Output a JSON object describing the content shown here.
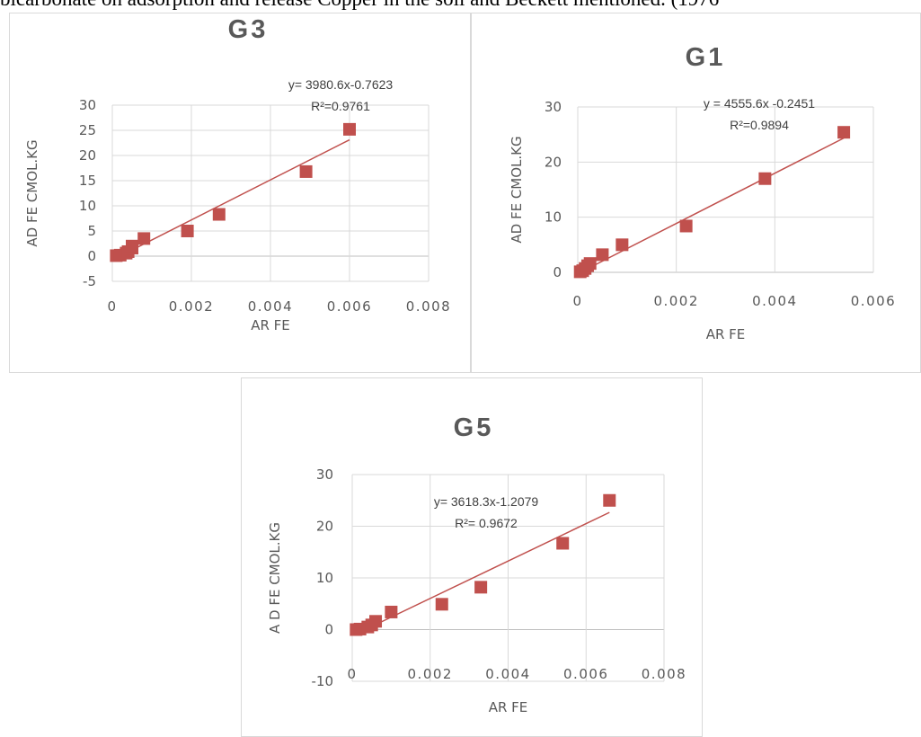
{
  "caption_text": "bicarbonate on adsorption and release Copper in the soil and Beckett mentioned. (1976",
  "chart_data": [
    {
      "type": "scatter",
      "title": "G3",
      "xlabel": "AR FE",
      "ylabel": "AD FE CMOL.KG",
      "xlim": [
        0,
        0.008
      ],
      "ylim": [
        -5,
        30
      ],
      "x_ticks": [
        "0",
        "0.002",
        "0.004",
        "0.006",
        "0.008"
      ],
      "y_ticks": [
        "-5",
        "0",
        "5",
        "10",
        "15",
        "20",
        "25",
        "30"
      ],
      "grid": true,
      "equation": "y= 3980.6x-0.7623",
      "r2_label": "R²=0.9761",
      "trend": {
        "slope": 3980.6,
        "intercept": -0.7623
      },
      "points": [
        [
          0.0001,
          0.1
        ],
        [
          0.0002,
          0.2
        ],
        [
          0.00035,
          0.6
        ],
        [
          0.0004,
          0.9
        ],
        [
          0.0005,
          1.6
        ],
        [
          0.0005,
          2.0
        ],
        [
          0.0008,
          3.5
        ],
        [
          0.0019,
          5.0
        ],
        [
          0.0027,
          8.3
        ],
        [
          0.0049,
          16.8
        ],
        [
          0.006,
          25.2
        ]
      ]
    },
    {
      "type": "scatter",
      "title": "G1",
      "xlabel": "AR FE",
      "ylabel": "AD FE CMOL.KG",
      "xlim": [
        0,
        0.006
      ],
      "ylim": [
        0,
        30
      ],
      "x_ticks": [
        "0",
        "0.002",
        "0.004",
        "0.006"
      ],
      "y_ticks": [
        "0",
        "10",
        "20",
        "30"
      ],
      "grid": true,
      "equation": "y = 4555.6x -0.2451",
      "r2_label": "R²=0.9894",
      "trend": {
        "slope": 4555.6,
        "intercept": -0.2451
      },
      "points": [
        [
          5e-05,
          0.1
        ],
        [
          0.0001,
          0.3
        ],
        [
          0.00015,
          0.7
        ],
        [
          0.0002,
          1.2
        ],
        [
          0.00025,
          1.6
        ],
        [
          0.0005,
          3.2
        ],
        [
          0.0009,
          5.0
        ],
        [
          0.0022,
          8.4
        ],
        [
          0.0038,
          17.0
        ],
        [
          0.0054,
          25.4
        ]
      ]
    },
    {
      "type": "scatter",
      "title": "G5",
      "xlabel": "AR FE",
      "ylabel": "A D FE CMOL.KG",
      "xlim": [
        0,
        0.008
      ],
      "ylim": [
        -10,
        30
      ],
      "x_ticks": [
        "0",
        "0.002",
        "0.004",
        "0.006",
        "0.008"
      ],
      "y_ticks": [
        "-10",
        "0",
        "10",
        "20",
        "30"
      ],
      "grid": true,
      "equation": "y= 3618.3x-1.2079",
      "r2_label": "R²= 0.9672",
      "trend": {
        "slope": 3618.3,
        "intercept": -1.2079
      },
      "points": [
        [
          0.0001,
          0.0
        ],
        [
          0.0002,
          0.1
        ],
        [
          0.0004,
          0.5
        ],
        [
          0.0005,
          0.9
        ],
        [
          0.0006,
          1.6
        ],
        [
          0.001,
          3.4
        ],
        [
          0.0023,
          4.9
        ],
        [
          0.0033,
          8.2
        ],
        [
          0.0054,
          16.7
        ],
        [
          0.0066,
          25.0
        ]
      ]
    }
  ]
}
